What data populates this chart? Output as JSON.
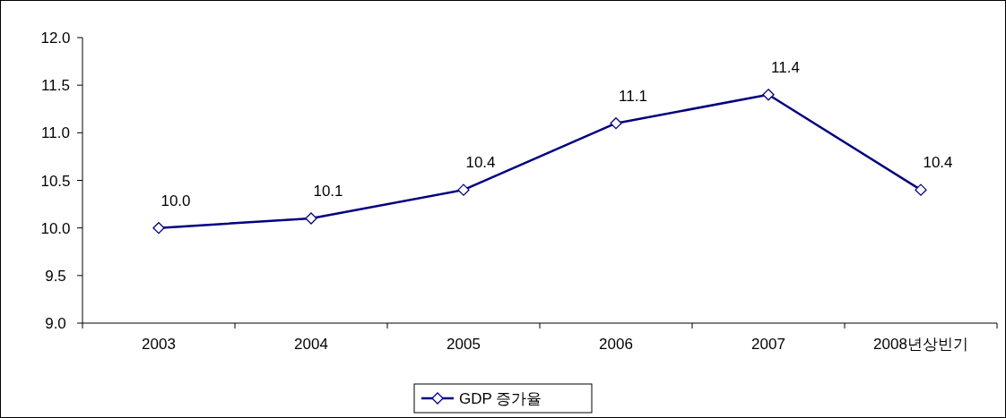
{
  "chart_data": {
    "type": "line",
    "categories": [
      "2003",
      "2004",
      "2005",
      "2006",
      "2007",
      "2008년상빈기"
    ],
    "series": [
      {
        "name": "GDP 증가율",
        "color": "#000080",
        "values": [
          10.0,
          10.1,
          10.4,
          11.1,
          11.4,
          10.4
        ],
        "value_labels": [
          "10.0",
          "10.1",
          "10.4",
          "11.1",
          "11.4",
          "10.4"
        ]
      }
    ],
    "ylim": [
      9,
      12
    ],
    "yticks": [
      {
        "value": 9,
        "label": "9.0"
      },
      {
        "value": 9.5,
        "label": "9.5"
      },
      {
        "value": 10,
        "label": "10.0"
      },
      {
        "value": 10.5,
        "label": "10.5"
      },
      {
        "value": 11,
        "label": "11.0"
      },
      {
        "value": 11.5,
        "label": "11.5"
      },
      {
        "value": 12,
        "label": "12.0"
      }
    ],
    "marker": "diamond",
    "line_style": "solid",
    "legend": "bottom",
    "grid": false
  }
}
